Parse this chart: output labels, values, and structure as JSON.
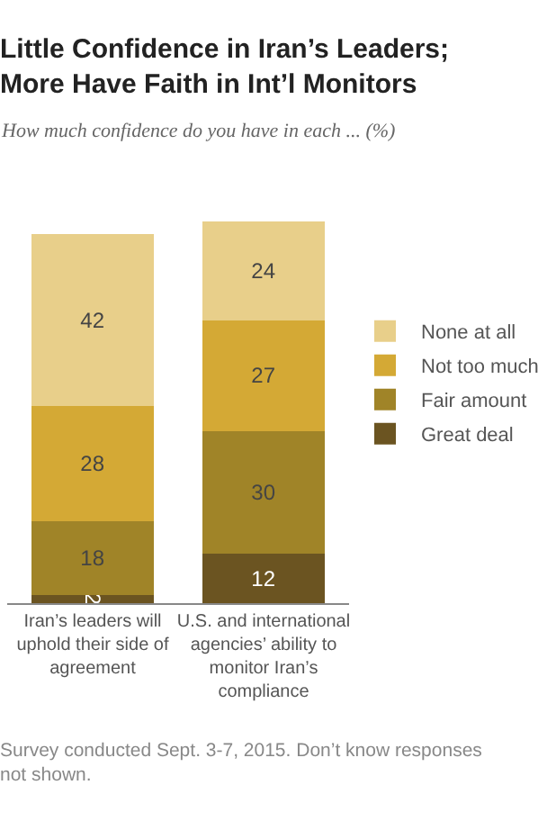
{
  "chart_data": {
    "type": "bar",
    "stacked": true,
    "data_labels": true,
    "legend": "right",
    "title": "Little Confidence in Iran’s Leaders; More Have Faith in Int’l Monitors",
    "subtitle": "How much confidence do you have in each ... (%)",
    "categories": [
      "Iran’s leaders will uphold their side of agreement",
      "U.S. and international agencies’ ability to monitor Iran’s compliance"
    ],
    "series": [
      {
        "name": "Great deal",
        "color": "#6b5421",
        "values": [
          2,
          12
        ]
      },
      {
        "name": "Fair amount",
        "color": "#a08428",
        "values": [
          18,
          30
        ]
      },
      {
        "name": "Not too much",
        "color": "#d4a935",
        "values": [
          28,
          27
        ]
      },
      {
        "name": "None at all",
        "color": "#e8cf8a",
        "values": [
          42,
          24
        ]
      }
    ],
    "annotations": [
      "Survey conducted Sept. 3-7, 2015. Don’t know responses not shown."
    ]
  }
}
